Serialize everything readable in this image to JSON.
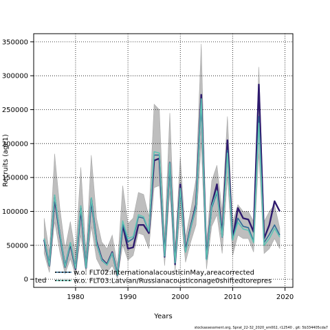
{
  "chart_data": {
    "type": "line",
    "title": "",
    "xlabel": "Years",
    "ylabel": "Recruits (age1)",
    "xlim": [
      1972,
      2021.5
    ],
    "ylim": [
      -12000,
      362000
    ],
    "xticks": [
      1980,
      1990,
      2000,
      2010,
      2020
    ],
    "xtick_labels": [
      "1980",
      "1990",
      "2000",
      "2010",
      "2020"
    ],
    "yticks": [
      0,
      50000,
      100000,
      150000,
      200000,
      250000,
      300000,
      350000
    ],
    "ytick_labels": [
      "0",
      "50000",
      "100000",
      "150000",
      "200000",
      "250000",
      "300000",
      "350000"
    ],
    "grid": true,
    "grid_style": "dotted",
    "legend_placement": "bottom-center",
    "x": [
      1974,
      1975,
      1976,
      1977,
      1978,
      1979,
      1980,
      1981,
      1982,
      1983,
      1984,
      1985,
      1986,
      1987,
      1988,
      1989,
      1990,
      1991,
      1992,
      1993,
      1994,
      1995,
      1996,
      1997,
      1998,
      1999,
      2000,
      2001,
      2002,
      2003,
      2004,
      2005,
      2006,
      2007,
      2008,
      2009,
      2010,
      2011,
      2012,
      2013,
      2014,
      2015,
      2016,
      2017,
      2018,
      2019
    ],
    "series": [
      {
        "name": "",
        "color": "#2e1a6e",
        "values": [
          58000,
          20000,
          120000,
          65000,
          18000,
          52000,
          15000,
          105000,
          17000,
          118000,
          55000,
          30000,
          22000,
          40000,
          6000,
          80000,
          45000,
          47000,
          80000,
          80000,
          68000,
          175000,
          178000,
          33000,
          172000,
          22000,
          140000,
          42000,
          78000,
          110000,
          272000,
          30000,
          110000,
          140000,
          65000,
          205000,
          60000,
          105000,
          90000,
          88000,
          70000,
          287000,
          60000,
          80000,
          115000,
          100000
        ]
      },
      {
        "name": "w.o. FLT02:InternationalacousticinMay,areacorrected",
        "color": "#2d6b96",
        "values": [
          60000,
          22000,
          124000,
          67000,
          19000,
          54000,
          16000,
          108000,
          18000,
          120000,
          52000,
          28000,
          21000,
          38000,
          6000,
          82000,
          55000,
          60000,
          92000,
          90000,
          70000,
          183000,
          183000,
          34000,
          170000,
          24000,
          130000,
          40000,
          76000,
          105000,
          262000,
          29000,
          105000,
          128000,
          62000,
          190000,
          58000,
          90000,
          78000,
          76000,
          56000,
          240000,
          54000,
          66000,
          80000,
          65000
        ]
      },
      {
        "name": "w.o. FLT03:Latvian/Russianacousticonage0shiftedtorepres",
        "color": "#5fc4b4",
        "values": [
          60000,
          20000,
          124000,
          66000,
          18000,
          54000,
          16000,
          108000,
          17000,
          120000,
          53000,
          29000,
          21000,
          39000,
          6000,
          86000,
          60000,
          63000,
          95000,
          92000,
          71000,
          188000,
          186000,
          34000,
          172000,
          24000,
          134000,
          40000,
          77000,
          107000,
          266000,
          29000,
          108000,
          130000,
          63000,
          186000,
          58000,
          84000,
          74000,
          72000,
          54000,
          230000,
          50000,
          60000,
          75000,
          62000
        ]
      }
    ],
    "confidence_band": {
      "color": "#bebebe",
      "upper": [
        90000,
        40000,
        185000,
        105000,
        45000,
        85000,
        38000,
        165000,
        40000,
        183000,
        90000,
        55000,
        45000,
        65000,
        20000,
        138000,
        82000,
        90000,
        128000,
        125000,
        92000,
        258000,
        250000,
        60000,
        245000,
        45000,
        180000,
        62000,
        102000,
        148000,
        347000,
        55000,
        145000,
        168000,
        100000,
        240000,
        85000,
        110000,
        100000,
        100000,
        85000,
        313000,
        85000,
        100000,
        110000,
        75000
      ],
      "lower": [
        38000,
        10000,
        85000,
        40000,
        8000,
        30000,
        6000,
        65000,
        8000,
        78000,
        30000,
        15000,
        10000,
        20000,
        1000,
        50000,
        28000,
        35000,
        68000,
        65000,
        45000,
        135000,
        138000,
        20000,
        130000,
        12000,
        100000,
        25000,
        55000,
        80000,
        200000,
        15000,
        78000,
        95000,
        38000,
        150000,
        35000,
        65000,
        60000,
        60000,
        40000,
        185000,
        38000,
        45000,
        60000,
        45000
      ]
    },
    "legend_entries": [
      {
        "label": "w.o. FLT02:InternationalacousticinMay,areacorrected",
        "color": "#2d6b96"
      },
      {
        "label": "w.o. FLT03:Latvian/Russianacousticonage0shiftedtorepres",
        "color": "#5fc4b4"
      }
    ],
    "legend_clipped_text": "ted"
  },
  "footer": {
    "text": "stockassessment.org, Sprat_22-32_2020_sm002, r12540 , git: 5b334405cda7"
  }
}
